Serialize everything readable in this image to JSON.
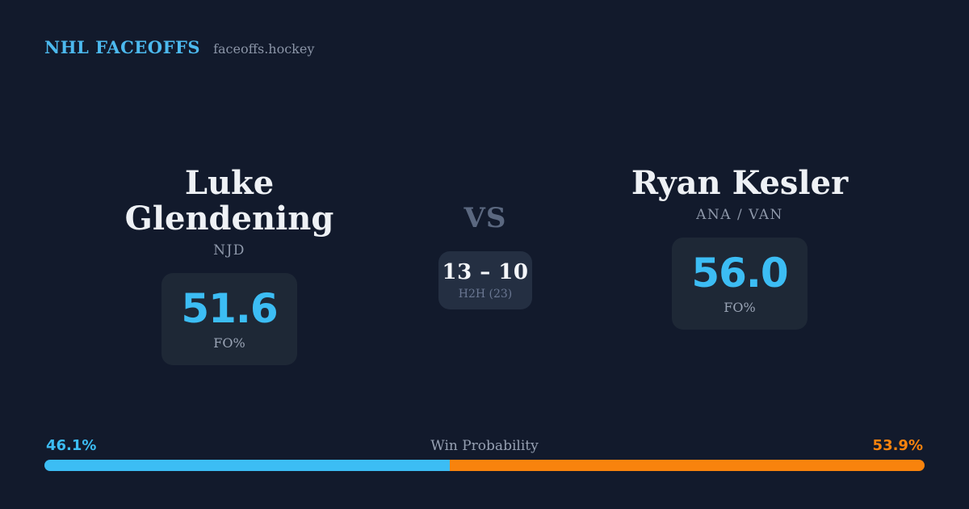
{
  "header": {
    "logo": "NHL FACEOFFS",
    "domain": "faceoffs.hockey"
  },
  "matchup": {
    "player_left": {
      "name": "Luke Glendening",
      "team": "NJD",
      "stat_value": "51.6",
      "stat_label": "FO%"
    },
    "center": {
      "vs_label": "VS",
      "h2h_score": "13 – 10",
      "h2h_label": "H2H (23)"
    },
    "player_right": {
      "name": "Ryan Kesler",
      "team": "ANA / VAN",
      "stat_value": "56.0",
      "stat_label": "FO%"
    }
  },
  "win_probability": {
    "title": "Win Probability",
    "left_pct": "46.1%",
    "right_pct": "53.9%",
    "left_value": 46.1,
    "right_value": 53.9
  },
  "colors": {
    "background": "#121a2c",
    "card_bg": "#1e2836",
    "h2h_card_bg": "#242f42",
    "accent_blue": "#3cbdf4",
    "accent_orange": "#f8830d",
    "logo_blue": "#4cb9ee"
  }
}
